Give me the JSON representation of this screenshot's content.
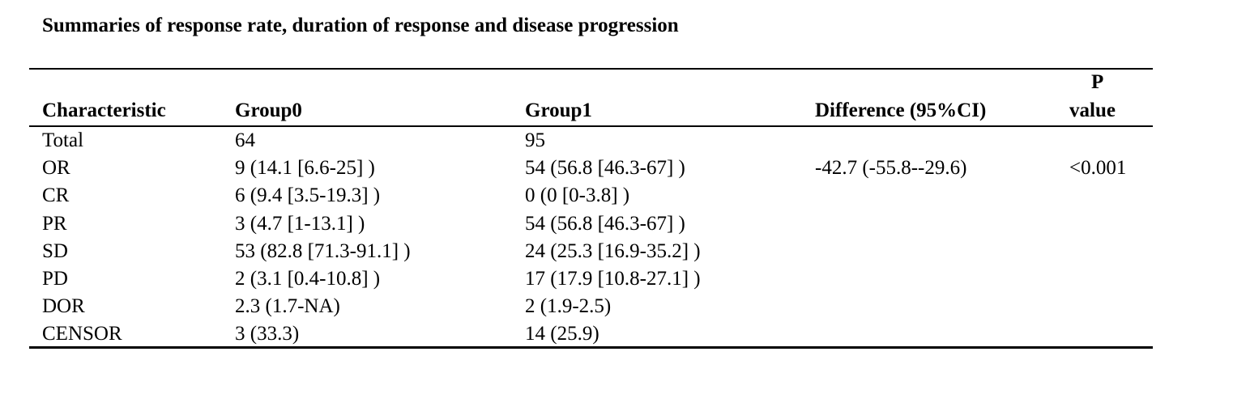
{
  "title": "Summaries of response rate, duration of response and disease progression",
  "table": {
    "headers": {
      "characteristic": "Characteristic",
      "group0": "Group0",
      "group1": "Group1",
      "difference": "Difference (95%CI)",
      "p_value_line1": "P",
      "p_value_line2": "value"
    },
    "rows": [
      {
        "characteristic": "Total",
        "group0": "64",
        "group1": "95",
        "difference": "",
        "p_value": ""
      },
      {
        "characteristic": "OR",
        "group0": "9 (14.1 [6.6-25] )",
        "group1": "54 (56.8 [46.3-67] )",
        "difference": "-42.7 (-55.8--29.6)",
        "p_value": "<0.001"
      },
      {
        "characteristic": "CR",
        "group0": "6 (9.4 [3.5-19.3] )",
        "group1": "0 (0 [0-3.8] )",
        "difference": "",
        "p_value": ""
      },
      {
        "characteristic": "PR",
        "group0": "3 (4.7 [1-13.1] )",
        "group1": "54 (56.8 [46.3-67] )",
        "difference": "",
        "p_value": ""
      },
      {
        "characteristic": "SD",
        "group0": "53 (82.8 [71.3-91.1] )",
        "group1": "24 (25.3 [16.9-35.2] )",
        "difference": "",
        "p_value": ""
      },
      {
        "characteristic": "PD",
        "group0": "2 (3.1 [0.4-10.8] )",
        "group1": "17 (17.9 [10.8-27.1] )",
        "difference": "",
        "p_value": ""
      },
      {
        "characteristic": "DOR",
        "group0": "2.3 (1.7-NA)",
        "group1": "2 (1.9-2.5)",
        "difference": "",
        "p_value": ""
      },
      {
        "characteristic": "CENSOR",
        "group0": "3 (33.3)",
        "group1": "14 (25.9)",
        "difference": "",
        "p_value": ""
      }
    ]
  }
}
